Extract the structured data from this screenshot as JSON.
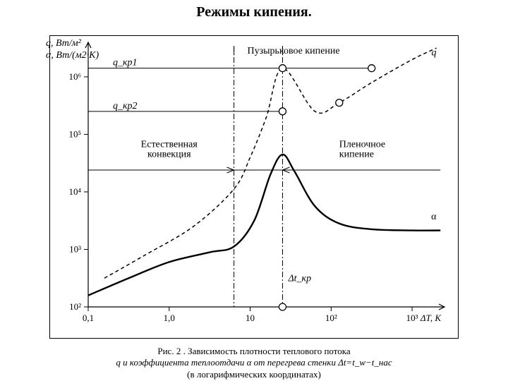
{
  "title": "Режимы кипения.",
  "y_axis_label": "q, Вт/м²\nα, Вт/(м2·К)",
  "caption_line1": "Рис.  2  . Зависимость плотности теплового потока",
  "caption_line2": "q и коэффициента теплоотдачи α от перегрева стенки Δt=t_w−t_нас",
  "caption_line3": "(в логарифмических координатах)",
  "chart": {
    "type": "line",
    "background_color": "#ffffff",
    "axis_color": "#000000",
    "tick_font_size": 13,
    "annot_font_size": 14,
    "x_axis": {
      "label": "ΔT, K",
      "scale": "log",
      "min_exp": -1,
      "max_exp": 3.4,
      "ticks": [
        {
          "exp": -1,
          "label": "0,1"
        },
        {
          "exp": 0,
          "label": "1,0"
        },
        {
          "exp": 1,
          "label": "10"
        },
        {
          "exp": 2,
          "label": "10²"
        },
        {
          "exp": 3,
          "label": "10³"
        }
      ]
    },
    "y_axis": {
      "scale": "log",
      "min_exp": 2,
      "max_exp": 6.6,
      "ticks": [
        {
          "exp": 2,
          "label": "10²"
        },
        {
          "exp": 3,
          "label": "10³"
        },
        {
          "exp": 4,
          "label": "10⁴"
        },
        {
          "exp": 5,
          "label": "10⁵"
        },
        {
          "exp": 6,
          "label": "10⁶"
        }
      ]
    },
    "series": [
      {
        "name": "q",
        "label": "q",
        "color": "#000000",
        "line_width": 1.5,
        "dash": "5,4",
        "marker": "circle",
        "marker_size": 5,
        "marker_fill": "#ffffff",
        "marker_stroke": "#000000",
        "points_log": [
          [
            -0.8,
            2.5
          ],
          [
            -0.3,
            2.9
          ],
          [
            0.3,
            3.4
          ],
          [
            0.8,
            4.05
          ],
          [
            1.0,
            4.6
          ],
          [
            1.2,
            5.3
          ],
          [
            1.4,
            6.15
          ],
          [
            1.8,
            5.4
          ],
          [
            2.1,
            5.55
          ],
          [
            2.5,
            5.9
          ],
          [
            3.0,
            6.3
          ],
          [
            3.3,
            6.5
          ]
        ],
        "marker_points_log": [
          [
            1.4,
            6.15
          ],
          [
            1.4,
            5.4
          ],
          [
            2.1,
            5.55
          ],
          [
            2.5,
            6.15
          ]
        ]
      },
      {
        "name": "alpha",
        "label": "α",
        "color": "#000000",
        "line_width": 2.4,
        "dash": "none",
        "points_log": [
          [
            -1.0,
            2.2
          ],
          [
            -0.5,
            2.5
          ],
          [
            0.0,
            2.78
          ],
          [
            0.5,
            2.95
          ],
          [
            0.8,
            3.05
          ],
          [
            1.05,
            3.5
          ],
          [
            1.25,
            4.3
          ],
          [
            1.4,
            4.65
          ],
          [
            1.55,
            4.35
          ],
          [
            1.8,
            3.75
          ],
          [
            2.1,
            3.45
          ],
          [
            2.5,
            3.35
          ],
          [
            3.0,
            3.33
          ],
          [
            3.35,
            3.33
          ]
        ]
      }
    ],
    "x_markers": [
      {
        "name": "x_boil_start",
        "exp": 0.8,
        "dash": "8,3,2,3",
        "color": "#000000",
        "width": 1
      },
      {
        "name": "x_crit",
        "exp": 1.4,
        "dash": "8,3,2,3",
        "color": "#000000",
        "width": 1
      }
    ],
    "h_lines": [
      {
        "name": "q_cr1",
        "y_exp": 6.15,
        "x_to_exp": 2.5,
        "label": "q_кр1"
      },
      {
        "name": "q_cr2",
        "y_exp": 5.4,
        "x_to_exp": 1.4,
        "label": "q_кр2"
      },
      {
        "name": "conv_line",
        "y_exp": 4.38,
        "x_to_exp": 3.35,
        "label": null
      }
    ],
    "annotations": {
      "nucleate": {
        "text": "Пузырьковое кипение",
        "x_exp": 1.1,
        "y_exp": 6.45
      },
      "natural_conv": {
        "text": "Естественная\nконвекция",
        "x_exp": 0.0,
        "y_exp": 4.78
      },
      "film": {
        "text": "Пленочное\nкипение",
        "x_exp": 2.1,
        "y_exp": 4.78
      },
      "delta_cr": {
        "text": "Δt_кр",
        "x_exp": 1.4,
        "y_exp": 2.45
      },
      "q_label": {
        "text": "q",
        "x_exp": 3.3,
        "y_exp": 6.3
      },
      "alpha_label": {
        "text": "α",
        "x_exp": 3.3,
        "y_exp": 3.45
      }
    }
  }
}
